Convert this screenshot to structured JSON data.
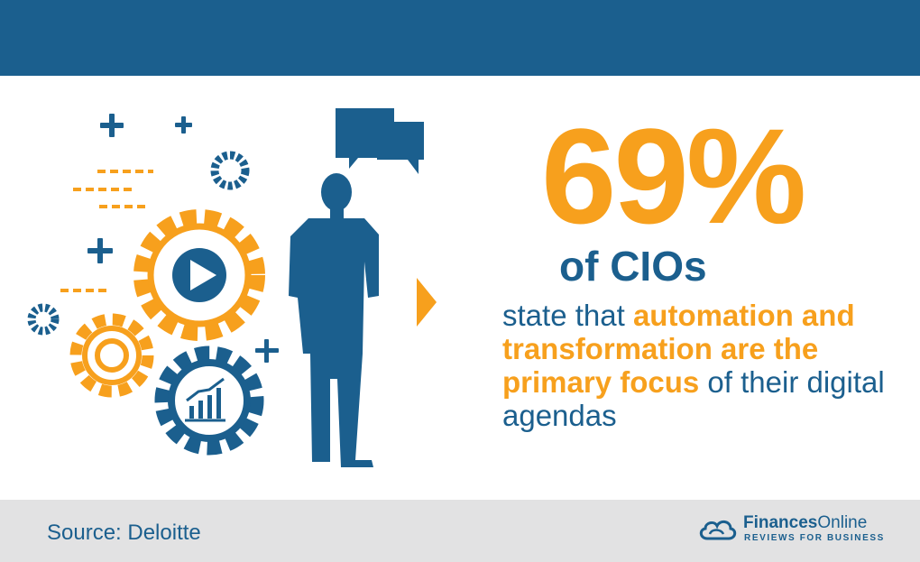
{
  "stat": {
    "value": "69%",
    "subject": "of CIOs"
  },
  "description": {
    "part1": "state that ",
    "highlight": "automation and transformation are the primary focus",
    "part2": " of their digital agendas"
  },
  "footer": {
    "source": "Source: Deloitte",
    "logo_name_bold": "Finances",
    "logo_name_regular": "Online",
    "logo_tagline": "REVIEWS FOR BUSINESS"
  },
  "colors": {
    "brand_blue": "#1b5f8e",
    "accent_orange": "#f7a01d",
    "footer_gray": "#e2e2e3"
  },
  "icons": [
    "gear-play-icon",
    "gear-icon",
    "gear-chart-icon",
    "businessman-silhouette-icon",
    "speech-bubbles-icon",
    "sparkle-icon"
  ]
}
